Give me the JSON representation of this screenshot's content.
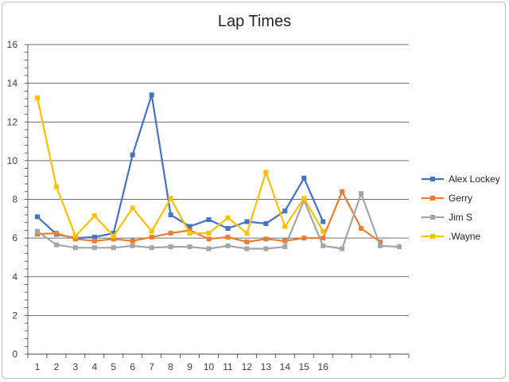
{
  "chart_data": {
    "type": "line",
    "title": "Lap Times",
    "xlabel": "",
    "ylabel": "",
    "ylim": [
      0,
      16
    ],
    "y_ticks": [
      0,
      2,
      4,
      6,
      8,
      10,
      12,
      14,
      16
    ],
    "x_tick_labels": [
      "1",
      "2",
      "3",
      "4",
      "5",
      "6",
      "7",
      "8",
      "9",
      "10",
      "11",
      "12",
      "13",
      "14",
      "15",
      "16"
    ],
    "x_slots": 20,
    "grid": true,
    "legend_placement": "right",
    "series": [
      {
        "name": "Alex Lockey",
        "color": "#4472c4",
        "values": [
          7.1,
          6.2,
          6.0,
          6.05,
          6.25,
          10.3,
          13.4,
          7.2,
          6.6,
          6.95,
          6.5,
          6.85,
          6.75,
          7.4,
          9.1,
          6.85
        ]
      },
      {
        "name": "Gerry",
        "color": "#ed7d31",
        "values": [
          6.2,
          6.25,
          5.95,
          5.85,
          5.95,
          5.85,
          6.05,
          6.25,
          6.4,
          5.95,
          6.05,
          5.8,
          5.95,
          5.85,
          6.0,
          6.0,
          8.4,
          6.5,
          5.8
        ]
      },
      {
        "name": "Jim S",
        "color": "#a5a5a5",
        "values": [
          6.35,
          5.65,
          5.5,
          5.5,
          5.5,
          5.6,
          5.5,
          5.55,
          5.55,
          5.45,
          5.6,
          5.45,
          5.45,
          5.55,
          7.95,
          5.6,
          5.45,
          8.3,
          5.6,
          5.55
        ]
      },
      {
        "name": ".Wayne",
        "color": "#ffc000",
        "values": [
          13.25,
          8.65,
          6.1,
          7.15,
          6.1,
          7.55,
          6.35,
          8.05,
          6.25,
          6.25,
          7.05,
          6.25,
          9.4,
          6.6,
          8.05,
          6.35
        ]
      }
    ]
  }
}
